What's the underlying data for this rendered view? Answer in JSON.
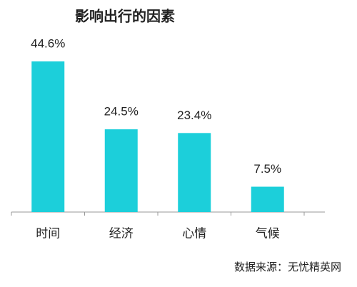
{
  "chart_data": {
    "type": "bar",
    "title": "影响出行的因素",
    "categories": [
      "时间",
      "经济",
      "心情",
      "气候"
    ],
    "values": [
      44.6,
      24.5,
      23.4,
      7.5
    ],
    "value_labels": [
      "44.6%",
      "24.5%",
      "23.4%",
      "7.5%"
    ],
    "color": "#1ccfda",
    "source": "数据来源：无忧精英网"
  }
}
